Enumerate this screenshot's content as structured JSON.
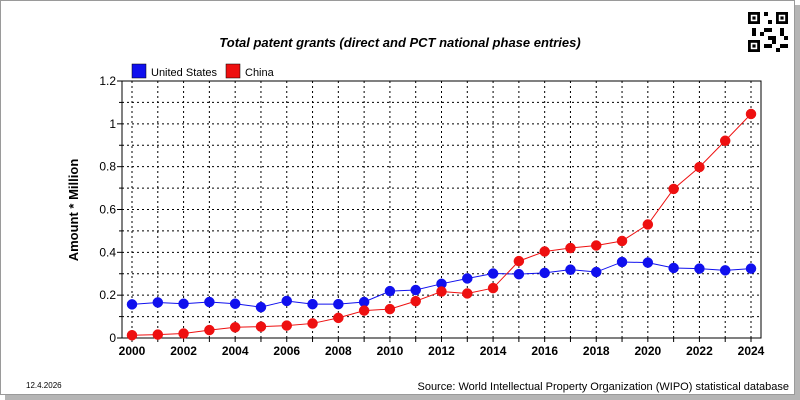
{
  "chart_data": {
    "type": "line",
    "title": "Total patent grants (direct and PCT national phase entries)",
    "xlabel": "",
    "ylabel": "Amount * Million",
    "xlim": [
      2000,
      2024
    ],
    "ylim": [
      0,
      1.2
    ],
    "x_ticks": [
      "2000",
      "2002",
      "2004",
      "2006",
      "2008",
      "2010",
      "2012",
      "2014",
      "2016",
      "2018",
      "2020",
      "2022",
      "2024"
    ],
    "y_ticks": [
      "0",
      "0.2",
      "0.4",
      "0.6",
      "0.8",
      "1",
      "1.2"
    ],
    "grid": true,
    "legend_position": "top-left",
    "x": [
      2000,
      2001,
      2002,
      2003,
      2004,
      2005,
      2006,
      2007,
      2008,
      2009,
      2010,
      2011,
      2012,
      2013,
      2014,
      2015,
      2016,
      2017,
      2018,
      2019,
      2020,
      2021,
      2022,
      2023,
      2024
    ],
    "series": [
      {
        "name": "United States",
        "color": "#1010ee",
        "values": [
          0.157,
          0.166,
          0.16,
          0.168,
          0.16,
          0.144,
          0.173,
          0.158,
          0.158,
          0.168,
          0.219,
          0.224,
          0.253,
          0.278,
          0.301,
          0.298,
          0.304,
          0.319,
          0.308,
          0.355,
          0.352,
          0.327,
          0.324,
          0.316,
          0.324
        ]
      },
      {
        "name": "China",
        "color": "#ee1010",
        "values": [
          0.013,
          0.016,
          0.021,
          0.037,
          0.05,
          0.053,
          0.058,
          0.068,
          0.094,
          0.128,
          0.135,
          0.172,
          0.217,
          0.208,
          0.233,
          0.359,
          0.404,
          0.42,
          0.432,
          0.453,
          0.53,
          0.696,
          0.798,
          0.921,
          1.046
        ]
      }
    ]
  },
  "footer": {
    "date": "12.4.2026",
    "source": "Source: World Intellectual Property Organization (WIPO) statistical database"
  },
  "qr_icon": "qr-code-icon"
}
